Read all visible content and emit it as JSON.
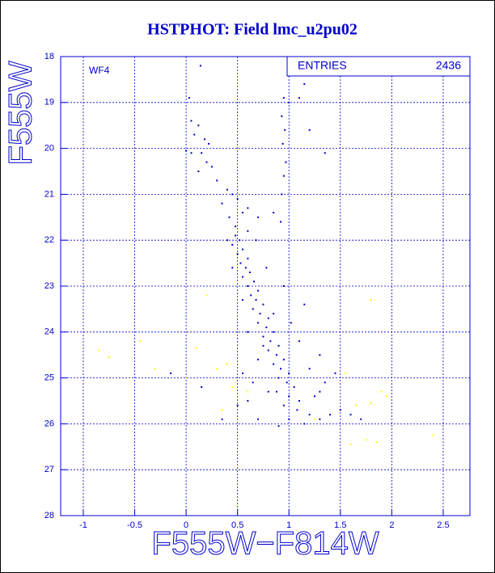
{
  "chart_data": {
    "type": "scatter",
    "title": "HSTPHOT: Field lmc_u2pu02",
    "x_label": "F555W−F814W",
    "y_label": "F555W",
    "annotation": "WF4",
    "stats": {
      "label": "ENTRIES",
      "value": 2436
    },
    "xlim": [
      -1.22,
      2.76
    ],
    "ylim": [
      28,
      18
    ],
    "xticks": [
      -1,
      -0.5,
      0,
      0.5,
      1,
      1.5,
      2,
      2.5
    ],
    "yticks": [
      18,
      19,
      20,
      21,
      22,
      23,
      24,
      25,
      26,
      27,
      28
    ],
    "grid": true,
    "series": [
      {
        "color": "#0000cc",
        "x": [
          0.14,
          0.03,
          0.05,
          0.08,
          0.12,
          0.18,
          0.22,
          0.0,
          0.05,
          0.15,
          0.2,
          0.12,
          0.25,
          0.3,
          0.4,
          0.45,
          0.35,
          0.5,
          0.42,
          0.55,
          0.6,
          0.48,
          0.7,
          0.85,
          0.92,
          0.95,
          0.93,
          0.96,
          0.94,
          0.97,
          0.95,
          0.93,
          1.0,
          1.15,
          1.1,
          1.2,
          1.35,
          0.48,
          0.52,
          0.45,
          0.55,
          0.5,
          0.6,
          0.53,
          0.58,
          0.62,
          0.55,
          0.66,
          0.6,
          0.7,
          0.63,
          0.68,
          0.75,
          0.65,
          0.72,
          0.8,
          0.7,
          0.78,
          0.85,
          0.75,
          0.82,
          0.9,
          0.8,
          0.88,
          0.95,
          0.85,
          0.92,
          1.0,
          0.9,
          0.98,
          1.05,
          0.88,
          1.0,
          1.1,
          0.95,
          1.08,
          1.2,
          1.0,
          1.15,
          1.3,
          1.4,
          1.5,
          1.6,
          0.6,
          0.7,
          0.8,
          0.5,
          0.9,
          1.25,
          1.35,
          1.45,
          1.3,
          1.1,
          1.2,
          0.7,
          0.6,
          0.55,
          0.45,
          0.4,
          1.02,
          1.15,
          0.95,
          1.3,
          1.7,
          -0.15,
          0.15,
          0.35,
          0.55,
          0.65,
          0.75,
          0.85,
          0.78,
          0.68,
          0.6
        ],
        "y": [
          18.2,
          18.9,
          19.4,
          19.7,
          19.5,
          19.8,
          19.9,
          20.05,
          20.1,
          20.1,
          20.3,
          20.5,
          20.4,
          20.7,
          20.9,
          21.0,
          21.2,
          21.1,
          21.5,
          21.4,
          21.3,
          21.7,
          21.5,
          21.4,
          21.6,
          18.9,
          19.3,
          19.6,
          19.9,
          20.3,
          20.6,
          21.0,
          19.0,
          18.6,
          18.9,
          19.6,
          20.1,
          21.9,
          22.0,
          22.1,
          22.2,
          22.3,
          22.4,
          22.5,
          22.6,
          22.7,
          22.8,
          22.9,
          23.0,
          23.1,
          23.2,
          23.3,
          23.4,
          23.5,
          23.6,
          23.7,
          23.8,
          23.9,
          24.0,
          24.1,
          24.2,
          24.3,
          24.4,
          24.5,
          24.6,
          24.7,
          24.8,
          24.9,
          25.0,
          25.1,
          25.2,
          25.3,
          25.4,
          25.5,
          25.6,
          25.7,
          25.8,
          25.9,
          26.0,
          25.9,
          25.8,
          25.7,
          25.8,
          25.5,
          25.9,
          25.3,
          25.6,
          26.05,
          25.4,
          25.1,
          24.9,
          24.5,
          24.2,
          24.8,
          24.6,
          24.0,
          23.3,
          22.6,
          22.0,
          23.8,
          23.4,
          23.0,
          25.3,
          25.9,
          24.9,
          25.2,
          25.9,
          24.9,
          25.1,
          24.3,
          23.6,
          22.6,
          22.0,
          21.8
        ]
      },
      {
        "color": "#ffff00",
        "x": [
          -0.85,
          -0.75,
          -0.45,
          -0.3,
          0.1,
          0.2,
          0.3,
          0.4,
          0.35,
          0.0,
          0.45,
          1.8,
          1.65,
          1.8,
          1.9,
          1.95,
          1.75,
          1.85,
          2.4,
          1.6,
          1.25,
          0.6,
          1.55
        ],
        "y": [
          24.4,
          24.55,
          24.2,
          24.8,
          24.35,
          23.2,
          24.8,
          24.7,
          25.7,
          25.0,
          25.2,
          23.3,
          25.6,
          25.55,
          25.3,
          25.4,
          26.35,
          26.4,
          26.25,
          26.45,
          25.9,
          25.3,
          24.9
        ]
      }
    ]
  }
}
